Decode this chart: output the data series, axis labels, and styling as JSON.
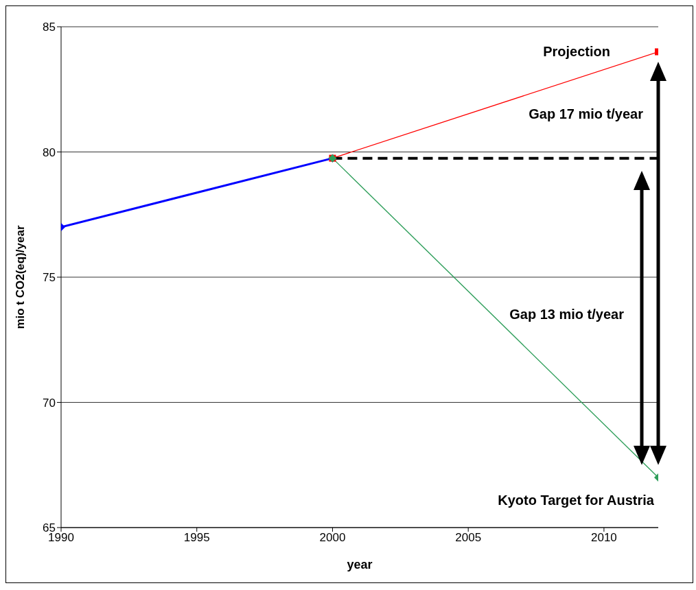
{
  "chart_data": {
    "type": "line",
    "xlabel": "year",
    "ylabel": "mio t CO2(eq)/year",
    "xlim": [
      1990,
      2012
    ],
    "xticks": [
      1990,
      1995,
      2000,
      2005,
      2010
    ],
    "ylim": [
      65,
      85
    ],
    "yticks": [
      65,
      70,
      75,
      80,
      85
    ],
    "grid": "y",
    "legend": false,
    "series": [
      {
        "color": "#0000ff",
        "x": [
          1990,
          2000
        ],
        "values": [
          77,
          79.75
        ],
        "marker": "diamond"
      },
      {
        "color": "#ff0000",
        "x": [
          2000,
          2012
        ],
        "values": [
          79.75,
          84
        ],
        "marker": "square"
      },
      {
        "color": "#2e9e5a",
        "x": [
          2000,
          2012
        ],
        "values": [
          79.75,
          67
        ],
        "marker": "diamond"
      },
      {
        "color": "#000000",
        "x": [
          2000,
          2012
        ],
        "values": [
          79.75,
          79.75
        ],
        "marker": "none",
        "line_style": "dashed"
      }
    ],
    "annotations": [
      "Projection",
      "Gap 17 mio t/year",
      "Gap 13 mio t/year",
      "Kyoto Target for Austria"
    ]
  }
}
